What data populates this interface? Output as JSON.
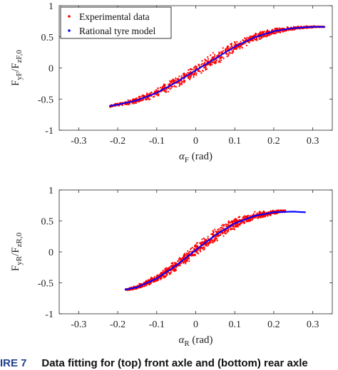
{
  "caption": {
    "label": "IRE 7",
    "text": "Data fitting for (top) front axle and (bottom) rear axle"
  },
  "colors": {
    "experimental": "#ff0000",
    "model": "#0000ff",
    "axis": "#262626",
    "legend_border": "#000000"
  },
  "chart_data": [
    {
      "type": "scatter",
      "title": "",
      "xlabel_symbol": "α",
      "xlabel_sub": "F",
      "xlabel_unit": " (rad)",
      "ylabel_main": "F",
      "ylabel_sub1": "yF",
      "ylabel_slash": "/F",
      "ylabel_sub2": "zF,0",
      "xlim": [
        -0.35,
        0.35
      ],
      "ylim": [
        -1,
        1
      ],
      "xticks": [
        -0.3,
        -0.2,
        -0.1,
        0,
        0.1,
        0.2,
        0.3
      ],
      "xtick_labels": [
        "-0.3",
        "-0.2",
        "-0.1",
        "0",
        "0.1",
        "0.2",
        "0.3"
      ],
      "yticks": [
        1,
        0.5,
        0,
        -0.5,
        -1
      ],
      "ytick_labels": [
        "1",
        "0.5",
        "0",
        "-0.5",
        "-1"
      ],
      "grid": false,
      "legend_position": "top-left",
      "series": [
        {
          "name": "Experimental data",
          "marker": "dot",
          "band_x_range": [
            -0.22,
            0.33
          ],
          "center": [
            [
              -0.22,
              -0.61
            ],
            [
              -0.2,
              -0.59
            ],
            [
              -0.15,
              -0.52
            ],
            [
              -0.1,
              -0.4
            ],
            [
              -0.05,
              -0.23
            ],
            [
              0,
              -0.04
            ],
            [
              0.05,
              0.15
            ],
            [
              0.1,
              0.34
            ],
            [
              0.15,
              0.49
            ],
            [
              0.2,
              0.59
            ],
            [
              0.25,
              0.64
            ],
            [
              0.3,
              0.66
            ],
            [
              0.33,
              0.66
            ]
          ],
          "spread": [
            [
              -0.22,
              0.02
            ],
            [
              -0.15,
              0.05
            ],
            [
              -0.05,
              0.1
            ],
            [
              0.05,
              0.12
            ],
            [
              0.15,
              0.07
            ],
            [
              0.25,
              0.03
            ],
            [
              0.33,
              0.01
            ]
          ]
        },
        {
          "name": "Rational tyre model",
          "marker": "dot",
          "x": [
            -0.22,
            -0.2,
            -0.15,
            -0.1,
            -0.05,
            0,
            0.05,
            0.1,
            0.15,
            0.2,
            0.25,
            0.3,
            0.33
          ],
          "y": [
            -0.61,
            -0.59,
            -0.52,
            -0.4,
            -0.23,
            -0.04,
            0.15,
            0.34,
            0.49,
            0.59,
            0.64,
            0.66,
            0.66
          ]
        }
      ]
    },
    {
      "type": "scatter",
      "title": "",
      "xlabel_symbol": "α",
      "xlabel_sub": "R",
      "xlabel_unit": " (rad)",
      "ylabel_main": "F",
      "ylabel_sub1": "yR",
      "ylabel_slash": "/F",
      "ylabel_sub2": "zR,0",
      "xlim": [
        -0.35,
        0.35
      ],
      "ylim": [
        -1,
        1
      ],
      "xticks": [
        -0.3,
        -0.2,
        -0.1,
        0,
        0.1,
        0.2,
        0.3
      ],
      "xtick_labels": [
        "-0.3",
        "-0.2",
        "-0.1",
        "0",
        "0.1",
        "0.2",
        "0.3"
      ],
      "yticks": [
        1,
        0.5,
        0,
        -0.5,
        -1
      ],
      "ytick_labels": [
        "1",
        "0.5",
        "0",
        "-0.5",
        "-1"
      ],
      "grid": false,
      "legend_position": "none",
      "series": [
        {
          "name": "Experimental data",
          "marker": "dot",
          "band_x_range": [
            -0.18,
            0.23
          ],
          "center": [
            [
              -0.18,
              -0.61
            ],
            [
              -0.15,
              -0.57
            ],
            [
              -0.1,
              -0.43
            ],
            [
              -0.05,
              -0.22
            ],
            [
              0,
              0.03
            ],
            [
              0.05,
              0.27
            ],
            [
              0.1,
              0.46
            ],
            [
              0.15,
              0.58
            ],
            [
              0.2,
              0.64
            ],
            [
              0.23,
              0.66
            ]
          ],
          "spread": [
            [
              -0.18,
              0.02
            ],
            [
              -0.1,
              0.07
            ],
            [
              0,
              0.12
            ],
            [
              0.1,
              0.1
            ],
            [
              0.2,
              0.04
            ],
            [
              0.23,
              0.02
            ]
          ]
        },
        {
          "name": "Rational tyre model",
          "marker": "dot",
          "x": [
            -0.18,
            -0.15,
            -0.1,
            -0.05,
            0,
            0.05,
            0.1,
            0.15,
            0.2,
            0.25,
            0.28
          ],
          "y": [
            -0.61,
            -0.57,
            -0.43,
            -0.22,
            0.03,
            0.27,
            0.46,
            0.58,
            0.64,
            0.65,
            0.64
          ]
        }
      ]
    }
  ]
}
